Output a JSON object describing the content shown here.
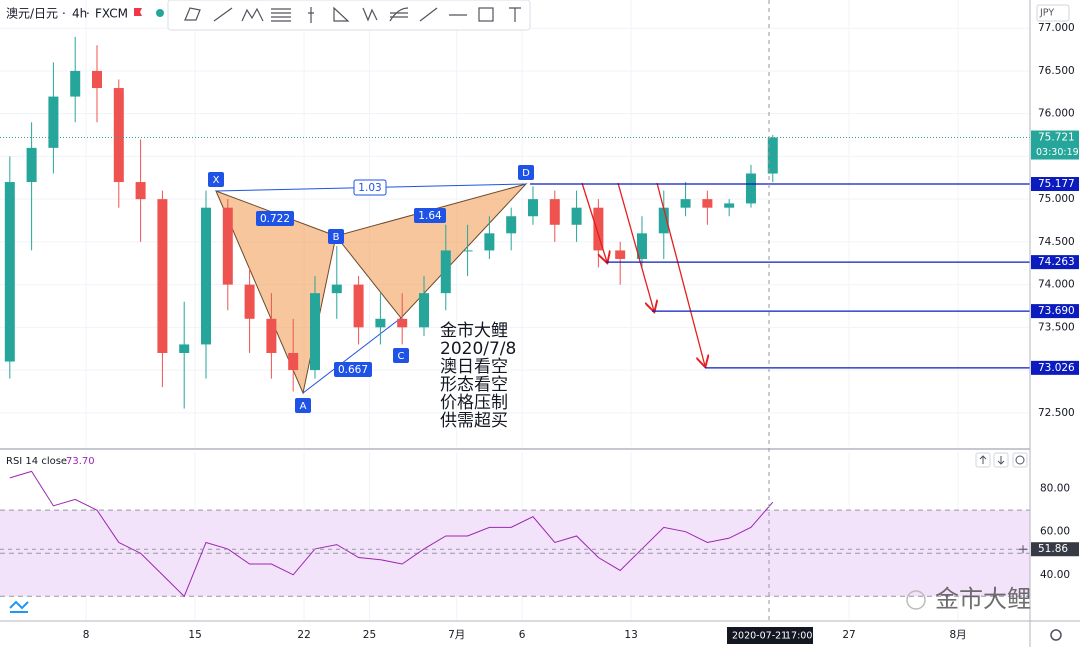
{
  "header": {
    "symbol": "澳元/日元",
    "interval": "4h",
    "source": "FXCM"
  },
  "pattern": {
    "points": [
      "X",
      "A",
      "B",
      "C",
      "D"
    ],
    "ratios": [
      0.722,
      1.03,
      1.64,
      0.667
    ]
  },
  "annotation": [
    "金市大鲤",
    "2020/7/8",
    "澳日看空",
    "形态看空",
    "价格压制",
    "供需超买"
  ],
  "watermark": "金市大鲤",
  "chart_data": [
    {
      "type": "candlestick",
      "currency": "JPY",
      "x": [
        1.5,
        2.5,
        3.5,
        4.5,
        5.5,
        6.5,
        7.5,
        8.5,
        9.5,
        10.5,
        11.5,
        12.5,
        13.5,
        14.5,
        15.5,
        16.5,
        17.5,
        18.5,
        19.5,
        20.5,
        21.5,
        22.5,
        23.5,
        24.5,
        25.5,
        26.5,
        27.5,
        28.5,
        29.5,
        30.5,
        31.5,
        32.5,
        33.5,
        34.5,
        35.5,
        36.5
      ],
      "open": [
        73.1,
        75.2,
        75.6,
        76.2,
        76.5,
        76.3,
        75.2,
        75.0,
        73.2,
        73.3,
        74.9,
        74.0,
        73.6,
        73.2,
        73.0,
        73.9,
        74.0,
        73.5,
        73.6,
        73.5,
        73.9,
        74.4,
        74.4,
        74.6,
        74.8,
        75.0,
        74.7,
        74.9,
        74.4,
        74.3,
        74.6,
        74.9,
        75.0,
        74.9,
        74.95,
        75.3
      ],
      "high": [
        75.5,
        75.9,
        76.6,
        76.9,
        76.8,
        76.4,
        75.7,
        75.1,
        73.8,
        75.1,
        75.0,
        74.2,
        73.9,
        73.6,
        74.1,
        74.45,
        74.1,
        73.9,
        73.9,
        74.1,
        74.7,
        74.7,
        74.8,
        74.9,
        75.15,
        75.1,
        75.1,
        75.0,
        74.5,
        74.8,
        75.1,
        75.2,
        75.1,
        75.0,
        75.4,
        75.75
      ],
      "low": [
        72.9,
        74.4,
        75.3,
        75.9,
        75.9,
        74.9,
        74.5,
        72.8,
        72.55,
        72.9,
        73.7,
        73.2,
        72.9,
        72.75,
        72.9,
        73.6,
        73.3,
        73.3,
        73.3,
        73.4,
        73.7,
        74.1,
        74.3,
        74.4,
        74.7,
        74.5,
        74.5,
        74.2,
        74.0,
        74.2,
        74.3,
        74.8,
        74.7,
        74.8,
        74.9,
        75.2
      ],
      "close": [
        75.2,
        75.6,
        76.2,
        76.5,
        76.3,
        75.2,
        75.0,
        73.2,
        73.3,
        74.9,
        74.0,
        73.6,
        73.2,
        73.0,
        73.9,
        74.0,
        73.5,
        73.6,
        73.5,
        73.9,
        74.4,
        74.4,
        74.6,
        74.8,
        75.0,
        74.7,
        74.9,
        74.4,
        74.3,
        74.6,
        74.9,
        75.0,
        74.9,
        74.95,
        75.3,
        75.721
      ],
      "up_color": "#26a69a",
      "down_color": "#ef5350",
      "xlim": [
        1.05,
        48.3
      ],
      "xticks": [
        {
          "value": 5,
          "label": "8"
        },
        {
          "value": 10,
          "label": "15"
        },
        {
          "value": 15,
          "label": "22"
        },
        {
          "value": 18,
          "label": "25"
        },
        {
          "value": 22,
          "label": "7月"
        },
        {
          "value": 25,
          "label": "6"
        },
        {
          "value": 30,
          "label": "13"
        },
        {
          "value": 40,
          "label": "27"
        },
        {
          "value": 45,
          "label": "8月"
        }
      ],
      "ylim": [
        72.1,
        77.33
      ],
      "yticks": [
        {
          "value": 72.5,
          "label": "72.500"
        },
        {
          "value": 73,
          "label": "73.000"
        },
        {
          "value": 73.5,
          "label": "73.500"
        },
        {
          "value": 74,
          "label": "74.000"
        },
        {
          "value": 74.5,
          "label": "74.500"
        },
        {
          "value": 75,
          "label": "75.000"
        },
        {
          "value": 75.5,
          "label": "75.500"
        },
        {
          "value": 76,
          "label": "76.000"
        },
        {
          "value": 76.5,
          "label": "76.500"
        },
        {
          "value": 77,
          "label": "77.000"
        }
      ],
      "grid": true,
      "levels": [
        75.177,
        74.263,
        {
          "value": 73.69,
          "label": "73.690"
        },
        73.026
      ],
      "level_color": "#0b1bbd",
      "last_price": 75.721,
      "countdown": "03:30:19",
      "crosshair": {
        "date": "2020-07-21",
        "time": "17:00"
      }
    },
    {
      "type": "line",
      "x": [
        1.5,
        2.5,
        3.5,
        4.5,
        5.5,
        6.5,
        7.5,
        8.5,
        9.5,
        10.5,
        11.5,
        12.5,
        13.5,
        14.5,
        15.5,
        16.5,
        17.5,
        18.5,
        19.5,
        20.5,
        21.5,
        22.5,
        23.5,
        24.5,
        25.5,
        26.5,
        27.5,
        28.5,
        29.5,
        30.5,
        31.5,
        32.5,
        33.5,
        34.5,
        35.5,
        36.5
      ],
      "series": [
        {
          "name": "RSI 14 close",
          "color": "#9c27b0",
          "last_label": "73.70",
          "values": [
            85,
            88,
            72,
            75,
            70,
            55,
            50,
            40,
            30,
            55,
            52,
            45,
            45,
            40,
            52,
            54,
            48,
            47,
            45,
            52,
            58,
            58,
            62,
            62,
            67,
            55,
            58,
            48,
            42,
            52,
            62,
            60,
            55,
            57,
            62,
            73.7
          ]
        }
      ],
      "xlim": [
        1.05,
        48.3
      ],
      "ylim": [
        19,
        97
      ],
      "yticks": [
        {
          "value": 40,
          "label": "40.00"
        },
        {
          "value": 60,
          "label": "60.00"
        },
        {
          "value": 80,
          "label": "80.00"
        }
      ],
      "band": [
        30,
        70
      ],
      "band_color": "#f3e3fa",
      "levels": [
        30,
        50,
        70
      ],
      "crosshair_value": 51.86
    }
  ]
}
